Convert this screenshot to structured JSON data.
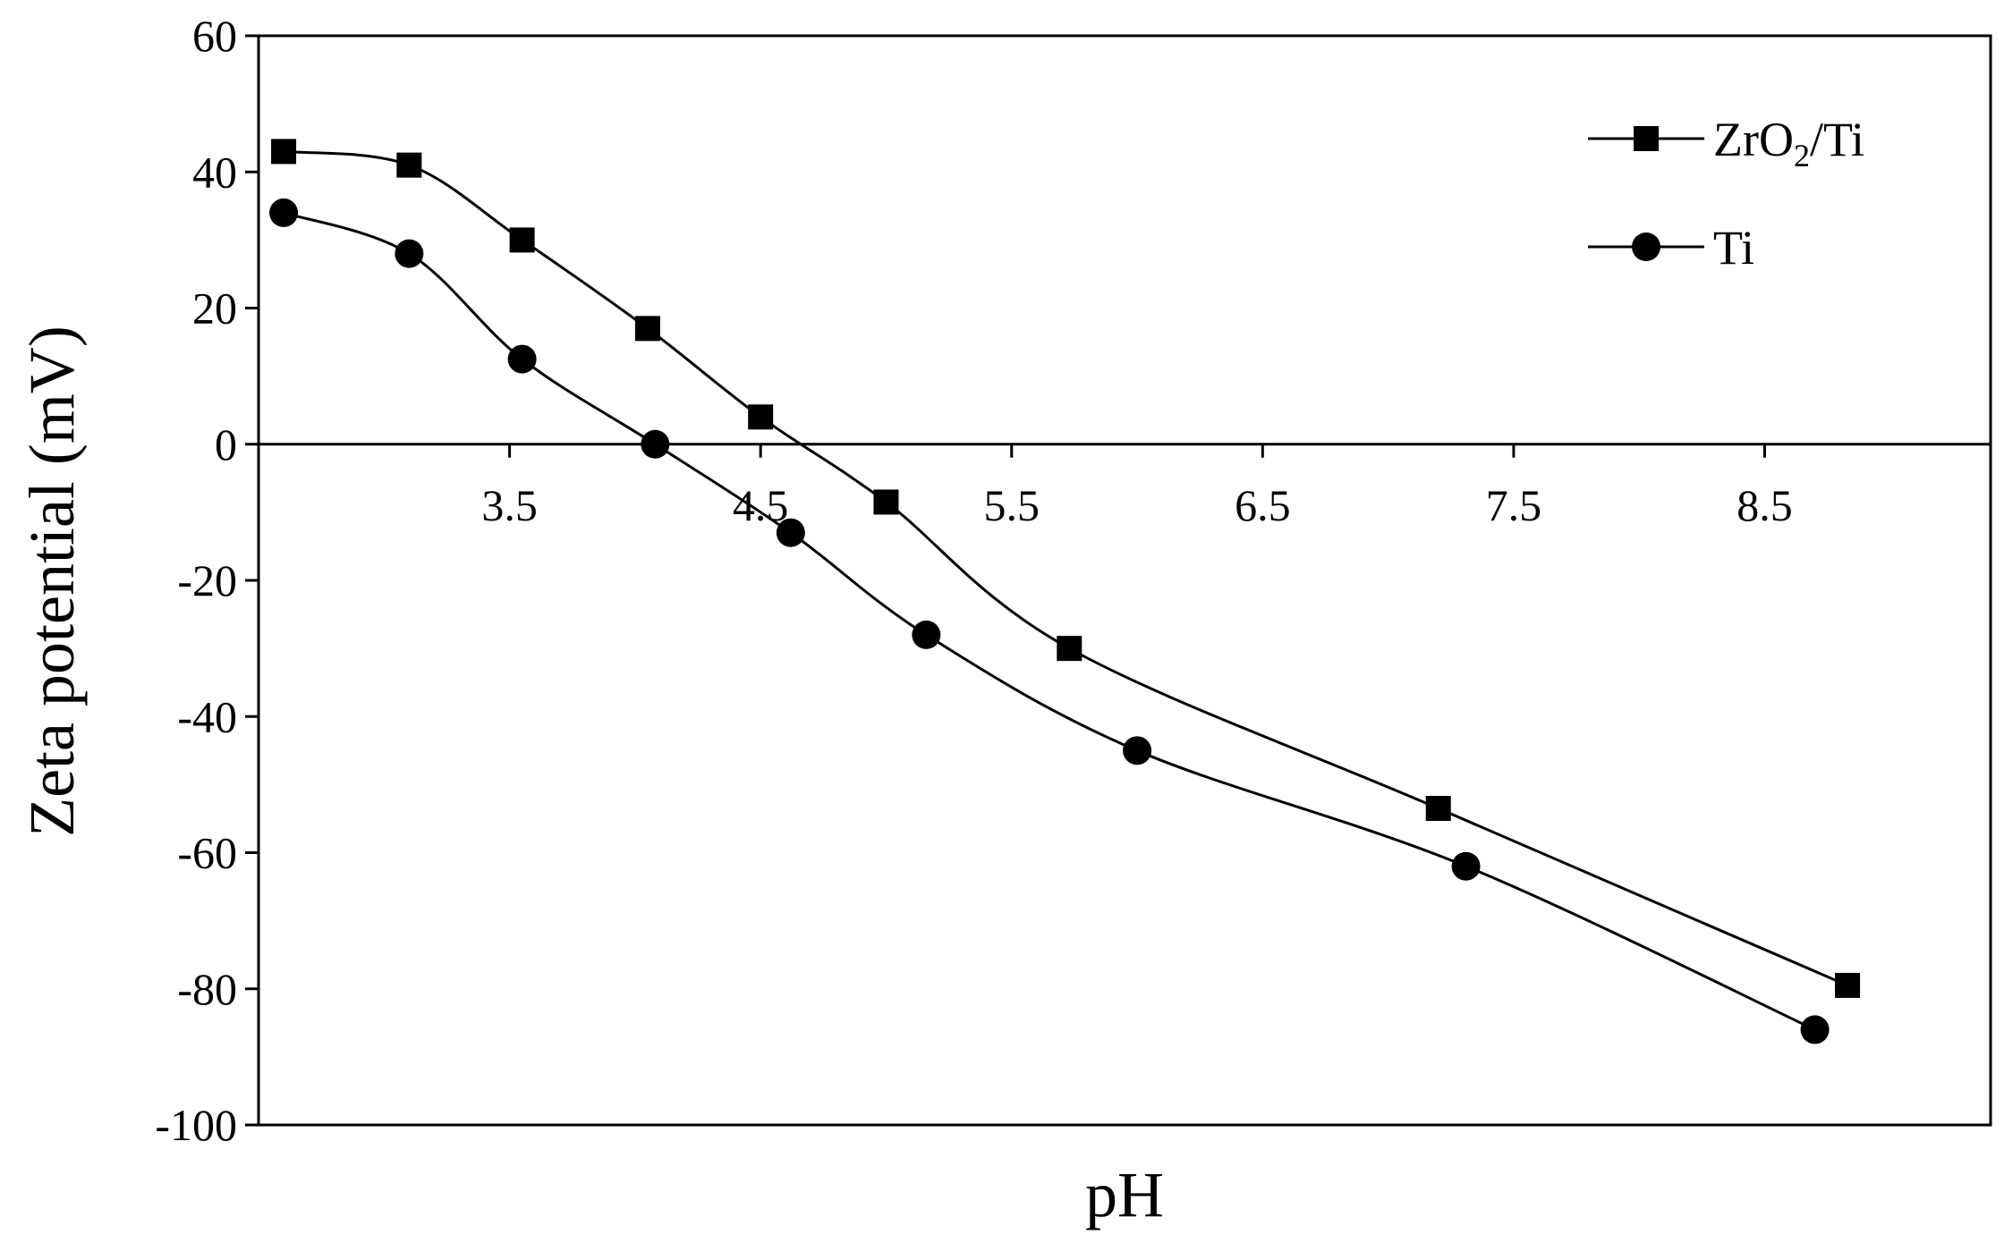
{
  "chart_data": {
    "type": "line",
    "title": "",
    "xlabel": "pH",
    "ylabel": "Zeta potential (mV)",
    "xlim": [
      2.5,
      9.4
    ],
    "ylim": [
      -100,
      60
    ],
    "xticks": [
      3.5,
      4.5,
      5.5,
      6.5,
      7.5,
      8.5
    ],
    "xtick_labels": [
      "3.5",
      "4.5",
      "5.5",
      "6.5",
      "7.5",
      "8.5"
    ],
    "yticks": [
      60,
      40,
      20,
      0,
      -20,
      -40,
      -60,
      -80,
      -100
    ],
    "ytick_labels": [
      "60",
      "40",
      "20",
      "0",
      "-20",
      "-40",
      "-60",
      "-80",
      "-100"
    ],
    "grid": false,
    "smooth": true,
    "legend_position": "top-right",
    "series": [
      {
        "name": "ZrO2/Ti",
        "name_main": "ZrO",
        "name_sub": "2",
        "name_tail": "/Ti",
        "marker": "square",
        "color": "#000000",
        "x": [
          2.6,
          3.1,
          3.55,
          4.05,
          4.5,
          5.0,
          5.73,
          7.2,
          8.83
        ],
        "y": [
          43,
          41,
          30,
          17,
          4,
          -8.5,
          -30,
          -53.5,
          -79.5
        ]
      },
      {
        "name": "Ti",
        "marker": "circle",
        "color": "#000000",
        "x": [
          2.6,
          3.1,
          3.55,
          4.08,
          4.62,
          5.16,
          6.0,
          7.31,
          8.7
        ],
        "y": [
          34,
          28,
          12.5,
          0,
          -13,
          -28,
          -45,
          -62,
          -86
        ]
      }
    ]
  }
}
